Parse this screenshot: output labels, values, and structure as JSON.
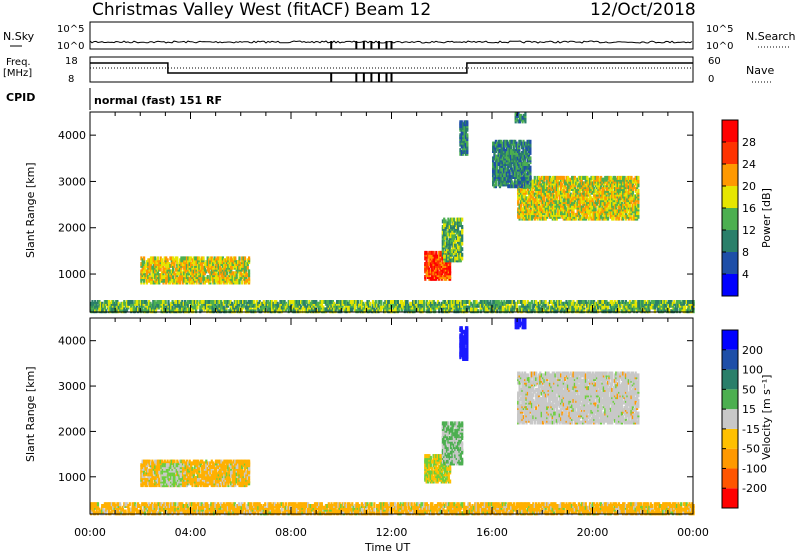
{
  "header": {
    "radar": "Christmas Valley West (fitACF)",
    "beam": "Beam 12",
    "date": "12/Oct/2018"
  },
  "left_labels": {
    "nsky": "N.Sky",
    "freq_line1": "Freq.",
    "freq_line2": "[MHz]",
    "cpid": "CPID"
  },
  "right_labels": {
    "nsearch": "N.Search",
    "nave": "Nave"
  },
  "cpid_text": "normal (fast) 151 RF",
  "noise_panel": {
    "left_ticks": [
      "10^5",
      "10^0"
    ],
    "right_ticks": [
      "10^5",
      "10^0"
    ]
  },
  "freq_panel": {
    "left_ticks": [
      "18",
      "8"
    ],
    "right_ticks": [
      "60",
      "0"
    ]
  },
  "chart_data": [
    {
      "type": "heatmap",
      "panel": "power",
      "ylabel": "Slant Range [km]",
      "xlabel": "Time UT",
      "x_ticks": [
        "00:00",
        "04:00",
        "08:00",
        "12:00",
        "16:00",
        "20:00",
        "00:00"
      ],
      "y_ticks": [
        1000,
        2000,
        3000,
        4000
      ],
      "xlim_hours": [
        0,
        24
      ],
      "ylim_km": [
        180,
        4500
      ],
      "colorbar": {
        "label": "Power [dB]",
        "ticks": [
          "4",
          "8",
          "12",
          "16",
          "20",
          "24",
          "28"
        ],
        "colors": [
          "#0000ff",
          "#1e4fa8",
          "#2a7f6a",
          "#4caf50",
          "#e6e600",
          "#ff9900",
          "#ff3300",
          "#ff0000"
        ]
      },
      "regions": [
        {
          "t0": 2.0,
          "t1": 6.3,
          "r0": 820,
          "r1": 1380,
          "level": 16
        },
        {
          "t0": 13.3,
          "t1": 14.3,
          "r0": 900,
          "r1": 1500,
          "level": 24
        },
        {
          "t0": 14.0,
          "t1": 14.8,
          "r0": 1300,
          "r1": 2200,
          "level": 12
        },
        {
          "t0": 17.0,
          "t1": 21.8,
          "r0": 2200,
          "r1": 3100,
          "level": 16
        },
        {
          "t0": 16.0,
          "t1": 17.5,
          "r0": 2900,
          "r1": 3900,
          "level": 8
        },
        {
          "t0": 0,
          "t1": 24,
          "r0": 200,
          "r1": 420,
          "level": 12
        },
        {
          "t0": 14.7,
          "t1": 15.0,
          "r0": 3600,
          "r1": 4300,
          "level": 8
        },
        {
          "t0": 16.9,
          "t1": 17.3,
          "r0": 4300,
          "r1": 4500,
          "level": 8
        }
      ]
    },
    {
      "type": "heatmap",
      "panel": "velocity",
      "ylabel": "Slant Range [km]",
      "xlabel": "Time UT",
      "x_ticks": [
        "00:00",
        "04:00",
        "08:00",
        "12:00",
        "16:00",
        "20:00",
        "00:00"
      ],
      "y_ticks": [
        1000,
        2000,
        3000,
        4000
      ],
      "xlim_hours": [
        0,
        24
      ],
      "ylim_km": [
        180,
        4500
      ],
      "colorbar": {
        "label": "Velocity [m s⁻¹]",
        "ticks": [
          "200",
          "100",
          "50",
          "15",
          "-15",
          "-50",
          "-100",
          "-200"
        ],
        "colors": [
          "#0000ff",
          "#1e4fa8",
          "#2a7f6a",
          "#4caf50",
          "#c8c8c8",
          "#ffc000",
          "#ff9900",
          "#ff5500",
          "#ff0000"
        ]
      },
      "regions": [
        {
          "t0": 2.0,
          "t1": 6.3,
          "r0": 820,
          "r1": 1380,
          "level": -50
        },
        {
          "t0": 2.8,
          "t1": 3.6,
          "r0": 820,
          "r1": 1300,
          "level": 15
        },
        {
          "t0": 13.3,
          "t1": 14.3,
          "r0": 900,
          "r1": 1500,
          "level": -15
        },
        {
          "t0": 14.0,
          "t1": 14.8,
          "r0": 1300,
          "r1": 2200,
          "level": 50
        },
        {
          "t0": 17.0,
          "t1": 21.8,
          "r0": 2200,
          "r1": 3300,
          "level": 0
        },
        {
          "t0": 0,
          "t1": 24,
          "r0": 200,
          "r1": 420,
          "level": -50
        },
        {
          "t0": 14.7,
          "t1": 15.0,
          "r0": 3600,
          "r1": 4300,
          "level": 200
        },
        {
          "t0": 16.9,
          "t1": 17.3,
          "r0": 4300,
          "r1": 4500,
          "level": 200
        }
      ]
    }
  ]
}
